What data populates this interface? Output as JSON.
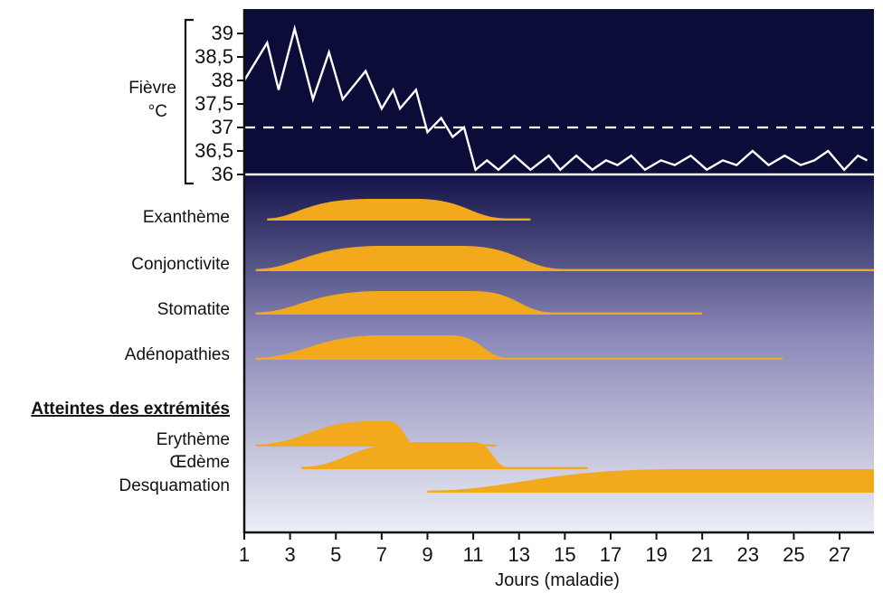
{
  "chart_data": {
    "type": "area",
    "fever": {
      "label_line1": "Fièvre",
      "label_line2": "°C",
      "y_ticks": [
        "39",
        "38,5",
        "38",
        "37,5",
        "37",
        "36,5",
        "36"
      ],
      "ylim": [
        36,
        39.2
      ],
      "reference_dashed": 37,
      "reference_solid": 36,
      "points": [
        [
          1,
          38.0
        ],
        [
          2,
          38.8
        ],
        [
          2.5,
          37.8
        ],
        [
          3.2,
          39.1
        ],
        [
          4,
          37.6
        ],
        [
          4.7,
          38.6
        ],
        [
          5.3,
          37.6
        ],
        [
          6.3,
          38.2
        ],
        [
          7,
          37.4
        ],
        [
          7.5,
          37.8
        ],
        [
          7.8,
          37.4
        ],
        [
          8.5,
          37.8
        ],
        [
          9,
          36.9
        ],
        [
          9.6,
          37.2
        ],
        [
          10.1,
          36.8
        ],
        [
          10.6,
          37.0
        ],
        [
          11.1,
          36.1
        ],
        [
          11.6,
          36.3
        ],
        [
          12.1,
          36.1
        ],
        [
          12.8,
          36.4
        ],
        [
          13.5,
          36.1
        ],
        [
          14.3,
          36.4
        ],
        [
          14.8,
          36.1
        ],
        [
          15.5,
          36.4
        ],
        [
          16.2,
          36.1
        ],
        [
          16.8,
          36.3
        ],
        [
          17.3,
          36.2
        ],
        [
          17.9,
          36.4
        ],
        [
          18.5,
          36.1
        ],
        [
          19.2,
          36.3
        ],
        [
          19.8,
          36.2
        ],
        [
          20.5,
          36.4
        ],
        [
          21.2,
          36.1
        ],
        [
          21.9,
          36.3
        ],
        [
          22.5,
          36.2
        ],
        [
          23.2,
          36.5
        ],
        [
          23.9,
          36.2
        ],
        [
          24.6,
          36.4
        ],
        [
          25.3,
          36.2
        ],
        [
          25.9,
          36.3
        ],
        [
          26.5,
          36.5
        ],
        [
          27.2,
          36.1
        ],
        [
          27.8,
          36.4
        ],
        [
          28.2,
          36.3
        ]
      ]
    },
    "symptoms": [
      {
        "name": "Exanthème",
        "start": 2,
        "plateau_start": 4.5,
        "peak": 6.5,
        "plateau_end": 8.5,
        "fade_end": 12.5,
        "tail_end": 13.5
      },
      {
        "name": "Conjonctivite",
        "start": 1.5,
        "plateau_start": 5,
        "peak": 7,
        "plateau_end": 10.5,
        "fade_end": 15,
        "tail_end": 28.5
      },
      {
        "name": "Stomatite",
        "start": 1.5,
        "plateau_start": 5,
        "peak": 7,
        "plateau_end": 11,
        "fade_end": 14.5,
        "tail_end": 21
      },
      {
        "name": "Adénopathies",
        "start": 1.5,
        "plateau_start": 5.5,
        "peak": 7,
        "plateau_end": 10,
        "fade_end": 12.5,
        "tail_end": 24.5
      }
    ],
    "section_title": "Atteintes des extrémités",
    "extremities": [
      {
        "name": "Erythème",
        "start": 1.5,
        "plateau_start": 5.5,
        "peak": 6.5,
        "plateau_end": 7.3,
        "fade_end": 8.5,
        "tail_end": 12
      },
      {
        "name": "Œdème",
        "start": 3.5,
        "plateau_start": 7,
        "peak": 8.5,
        "plateau_end": 11,
        "fade_end": 12.5,
        "tail_end": 16
      },
      {
        "name": "Desquamation",
        "start": 9,
        "plateau_start": 16.5,
        "peak": 20,
        "plateau_end": 28.5,
        "fade_end": 28.5,
        "tail_end": 28.5
      }
    ],
    "x_ticks": [
      "1",
      "3",
      "5",
      "7",
      "9",
      "11",
      "13",
      "15",
      "17",
      "19",
      "21",
      "23",
      "25",
      "27"
    ],
    "xlabel": "Jours (maladie)",
    "xlim": [
      1,
      28.5
    ],
    "colors": {
      "fever_bg": "#0c0c38",
      "gradient_top": "#14144a",
      "gradient_mid": "#8a88b8",
      "gradient_bottom": "#eceef6",
      "area": "#f2a91c",
      "fever_line": "#ffffff"
    }
  }
}
